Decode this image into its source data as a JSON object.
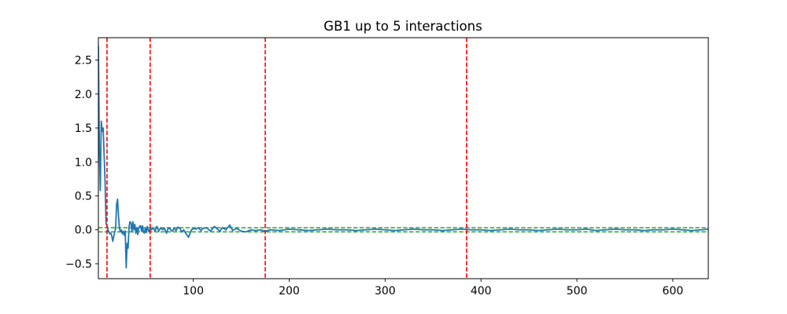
{
  "chart_data": {
    "type": "line",
    "title": "GB1 up to 5 interactions",
    "xlabel": "",
    "ylabel": "",
    "xlim": [
      1,
      637
    ],
    "ylim": [
      -0.72,
      2.83
    ],
    "x_ticks": [
      100,
      200,
      300,
      400,
      500,
      600
    ],
    "y_ticks": [
      -0.5,
      0.0,
      0.5,
      1.0,
      1.5,
      2.0,
      2.5
    ],
    "x_tick_labels": [
      "100",
      "200",
      "300",
      "400",
      "500",
      "600"
    ],
    "y_tick_labels": [
      "−0.5",
      "0.0",
      "0.5",
      "1.0",
      "1.5",
      "2.0",
      "2.5"
    ],
    "grid": false,
    "legend": "none",
    "series": [
      {
        "color": "#1f77b4",
        "x": [
          1,
          2,
          3,
          4,
          5,
          6,
          7,
          8,
          9,
          10,
          11,
          12,
          13,
          14,
          15,
          16,
          17,
          18,
          19,
          20,
          21,
          22,
          23,
          24,
          25,
          26,
          27,
          28,
          29,
          30,
          31,
          32,
          33,
          34,
          35,
          36,
          37,
          38,
          39,
          40,
          41,
          42,
          43,
          44,
          45,
          46,
          47,
          48,
          49,
          50,
          51,
          52,
          53,
          54,
          55,
          56,
          57,
          58,
          60,
          62,
          64,
          66,
          68,
          70,
          72,
          74,
          76,
          78,
          80,
          82,
          84,
          86,
          88,
          90,
          92,
          95,
          98,
          101,
          103,
          105,
          108,
          110,
          114,
          118,
          122,
          126,
          128,
          130,
          134,
          138,
          141,
          145,
          150,
          155,
          160,
          165,
          170,
          175,
          180,
          190,
          200,
          210,
          220,
          230,
          240,
          250,
          260,
          270,
          280,
          290,
          300,
          310,
          320,
          330,
          340,
          350,
          360,
          370,
          380,
          390,
          400,
          410,
          420,
          430,
          440,
          450,
          460,
          470,
          480,
          490,
          500,
          510,
          520,
          530,
          540,
          550,
          560,
          570,
          580,
          590,
          600,
          610,
          620,
          630,
          637
        ],
        "y": [
          2.7,
          1.2,
          0.58,
          1.6,
          1.45,
          1.5,
          1.1,
          0.7,
          0.1,
          0.05,
          0.0,
          -0.03,
          -0.06,
          -0.05,
          -0.09,
          -0.17,
          -0.1,
          -0.03,
          0.02,
          0.38,
          0.45,
          0.2,
          0.02,
          -0.03,
          0.0,
          -0.06,
          -0.02,
          -0.08,
          -0.02,
          -0.56,
          -0.2,
          -0.27,
          0.05,
          0.12,
          0.1,
          -0.03,
          0.12,
          0.0,
          0.08,
          -0.05,
          0.03,
          -0.07,
          0.02,
          0.05,
          0.06,
          -0.02,
          0.06,
          -0.03,
          -0.05,
          0.03,
          -0.04,
          0.05,
          -0.01,
          -0.02,
          0.02,
          0.0,
          0.01,
          0.03,
          -0.02,
          0.05,
          -0.02,
          0.03,
          0.0,
          0.02,
          -0.05,
          0.03,
          0.01,
          -0.02,
          0.02,
          -0.01,
          0.04,
          0.02,
          -0.03,
          0.0,
          -0.05,
          -0.11,
          0.0,
          0.02,
          0.01,
          0.03,
          -0.01,
          0.02,
          0.03,
          -0.02,
          0.05,
          0.0,
          -0.02,
          0.03,
          0.0,
          0.07,
          -0.01,
          0.02,
          -0.02,
          -0.03,
          0.0,
          -0.01,
          0.0,
          -0.02,
          0.0,
          -0.01,
          0.01,
          0.0,
          -0.01,
          0.0,
          0.01,
          0.0,
          0.0,
          -0.01,
          0.0,
          0.01,
          0.0,
          -0.01,
          0.0,
          0.01,
          0.0,
          0.0,
          -0.01,
          0.0,
          0.01,
          0.0,
          0.0,
          -0.01,
          0.0,
          0.01,
          0.0,
          0.0,
          -0.01,
          0.0,
          0.01,
          0.0,
          0.0,
          0.01,
          -0.01,
          0.0,
          0.01,
          0.0,
          0.0,
          -0.01,
          0.0,
          0.0,
          0.01,
          0.0,
          -0.01,
          0.0,
          0.01
        ]
      }
    ],
    "vlines": [
      {
        "x": 10,
        "color": "#ff0000",
        "style": "dashed"
      },
      {
        "x": 55,
        "color": "#ff0000",
        "style": "dashed"
      },
      {
        "x": 175,
        "color": "#ff0000",
        "style": "dashed"
      },
      {
        "x": 385,
        "color": "#ff0000",
        "style": "dashed"
      }
    ],
    "hlines": [
      {
        "y": 0.03,
        "color": "#2ca02c",
        "style": "dashed"
      },
      {
        "y": -0.03,
        "color": "#2ca02c",
        "style": "dashed"
      }
    ]
  }
}
